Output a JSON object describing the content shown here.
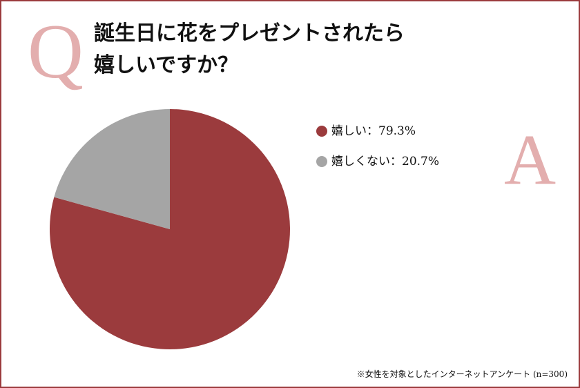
{
  "chart_data": {
    "type": "pie",
    "title": [
      "誕生日に花をプレゼントされたら",
      "嬉しいですか？"
    ],
    "question_mark": "Q",
    "answer_mark": "A",
    "categories": [
      "嬉しい",
      "嬉しくない"
    ],
    "values": [
      79.3,
      20.7
    ],
    "value_labels": [
      "79.3%",
      "20.7%"
    ],
    "label_separator": "：",
    "colors": [
      "#9b3b3d",
      "#a5a5a5"
    ],
    "note": "※女性を対象としたインターネットアンケート (n=300)"
  }
}
